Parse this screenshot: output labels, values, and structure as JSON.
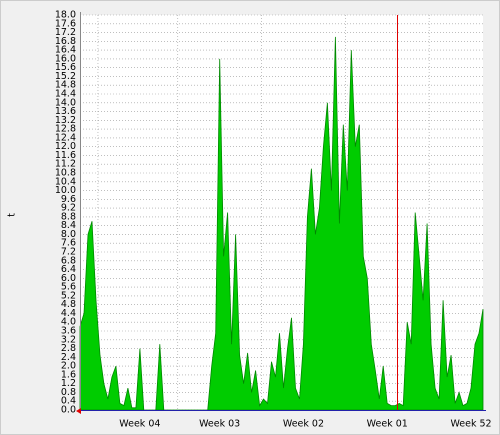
{
  "chart_data": {
    "type": "area",
    "y_label": "t",
    "color": "#00cc00",
    "line_color": "#008800",
    "grid": true,
    "ylim": [
      0,
      18
    ],
    "yticks": [
      {
        "value": 0,
        "label": "0.0"
      },
      0.4,
      0.8,
      1.2,
      1.6,
      {
        "value": 2,
        "label": "2.0"
      },
      2.4,
      2.8,
      3.2,
      3.6,
      {
        "value": 4,
        "label": "4.0"
      },
      4.4,
      4.8,
      5.2,
      5.6,
      {
        "value": 6,
        "label": "6.0"
      },
      6.4,
      6.8,
      7.2,
      7.6,
      {
        "value": 8,
        "label": "8.0"
      },
      8.4,
      8.8,
      9.2,
      9.6,
      {
        "value": 10,
        "label": "10.0"
      },
      10.4,
      10.8,
      11.2,
      11.6,
      {
        "value": 12,
        "label": "12.0"
      },
      12.4,
      12.8,
      13.2,
      13.6,
      {
        "value": 14,
        "label": "14.0"
      },
      14.4,
      14.8,
      15.2,
      15.6,
      {
        "value": 16,
        "label": "16.0"
      },
      16.4,
      16.8,
      17.2,
      17.6,
      {
        "value": 18,
        "label": "18.0"
      }
    ],
    "categories": [
      null,
      null,
      null,
      null,
      null,
      null,
      null,
      null,
      null,
      null,
      null,
      null,
      null,
      null,
      null,
      "Week 04",
      null,
      null,
      null,
      null,
      null,
      null,
      null,
      null,
      null,
      null,
      null,
      null,
      null,
      null,
      null,
      null,
      null,
      null,
      null,
      "Week 03",
      null,
      null,
      null,
      null,
      null,
      null,
      null,
      null,
      null,
      null,
      null,
      null,
      null,
      null,
      null,
      null,
      null,
      null,
      null,
      null,
      "Week 02",
      null,
      null,
      null,
      null,
      null,
      null,
      null,
      null,
      null,
      null,
      null,
      null,
      null,
      null,
      null,
      null,
      null,
      null,
      null,
      null,
      "Week 01",
      null,
      null,
      null,
      null,
      null,
      null,
      null,
      null,
      null,
      null,
      null,
      null,
      null,
      null,
      null,
      null,
      null,
      null,
      null,
      null,
      "Week 52",
      null,
      null,
      null
    ],
    "values": [
      3.8,
      4.4,
      8.0,
      8.6,
      5.0,
      2.5,
      1.2,
      0.5,
      1.5,
      2.0,
      0.3,
      0.2,
      1.0,
      0.1,
      0.1,
      2.8,
      0,
      0,
      0,
      0,
      3.0,
      0,
      0,
      0,
      0,
      0,
      0,
      0,
      0,
      0,
      0,
      0,
      0,
      2.0,
      3.5,
      16.0,
      7.0,
      9.0,
      3.0,
      8.0,
      2.5,
      1.2,
      2.6,
      0.8,
      1.8,
      0.2,
      0.5,
      0.3,
      2.2,
      1.5,
      3.5,
      1.0,
      2.8,
      4.2,
      1.0,
      0.5,
      3.0,
      8.8,
      11.0,
      8.0,
      9.2,
      12.0,
      14.0,
      10.0,
      17.0,
      8.5,
      13.0,
      10.0,
      16.4,
      12.0,
      13.0,
      7.0,
      6.0,
      3.0,
      1.8,
      0.5,
      2.0,
      0.3,
      0.2,
      0.2,
      0.3,
      0.2,
      4.0,
      3.0,
      9.0,
      7.0,
      5.0,
      8.5,
      3.0,
      1.0,
      0.5,
      5.0,
      1.5,
      2.5,
      0.3,
      0.8,
      0.2,
      0.3,
      1.0,
      3.0,
      3.5,
      4.6
    ]
  }
}
